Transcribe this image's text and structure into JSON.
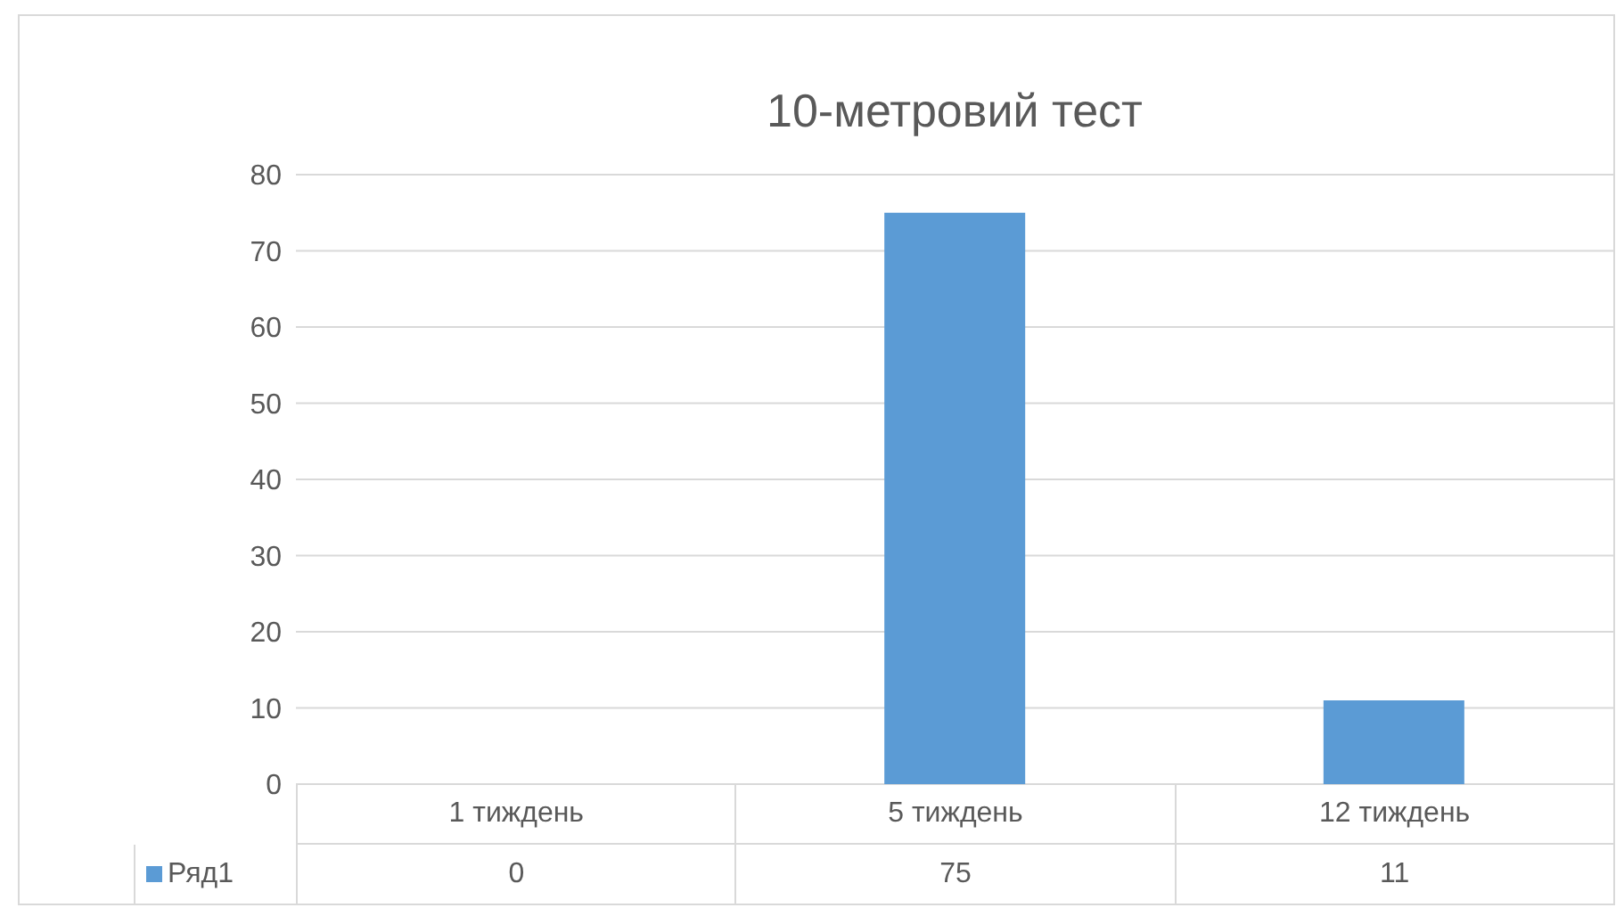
{
  "chart_data": {
    "type": "bar",
    "title": "10-метровий тест",
    "categories": [
      "1 тиждень",
      "5 тиждень",
      "12 тиждень"
    ],
    "series": [
      {
        "name": "Ряд1",
        "color": "#5b9bd5",
        "values": [
          0,
          75,
          11
        ]
      }
    ],
    "ylim": [
      0,
      80
    ],
    "yticks": [
      0,
      10,
      20,
      30,
      40,
      50,
      60,
      70,
      80
    ],
    "grid": "y",
    "legend": "bottom",
    "data_labels": true
  }
}
